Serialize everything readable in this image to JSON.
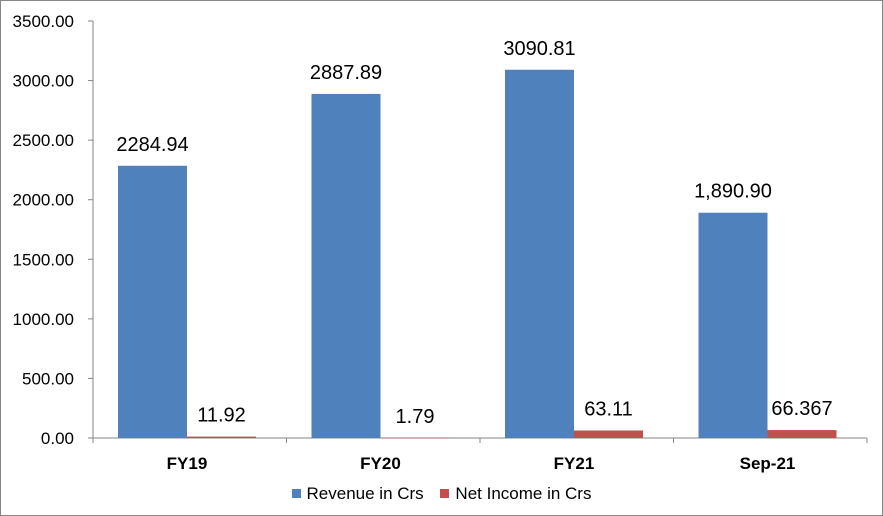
{
  "chart_data": {
    "type": "bar",
    "categories": [
      "FY19",
      "FY20",
      "FY21",
      "Sep-21"
    ],
    "series": [
      {
        "name": "Revenue in Crs",
        "values": [
          2284.94,
          2887.89,
          3090.81,
          1890.9
        ],
        "labels": [
          "2284.94",
          "2887.89",
          "3090.81",
          "1,890.90"
        ],
        "color": "#4f81bd"
      },
      {
        "name": "Net Income in Crs",
        "values": [
          11.92,
          1.79,
          63.11,
          66.367
        ],
        "labels": [
          "11.92",
          "1.79",
          "63.11",
          "66.367"
        ],
        "color": "#c0504d"
      }
    ],
    "y_ticks": [
      "0.00",
      "500.00",
      "1000.00",
      "1500.00",
      "2000.00",
      "2500.00",
      "3000.00",
      "3500.00"
    ],
    "ylim": [
      0,
      3500
    ],
    "title": "",
    "xlabel": "",
    "ylabel": "",
    "grid": false,
    "legend_position": "bottom"
  }
}
